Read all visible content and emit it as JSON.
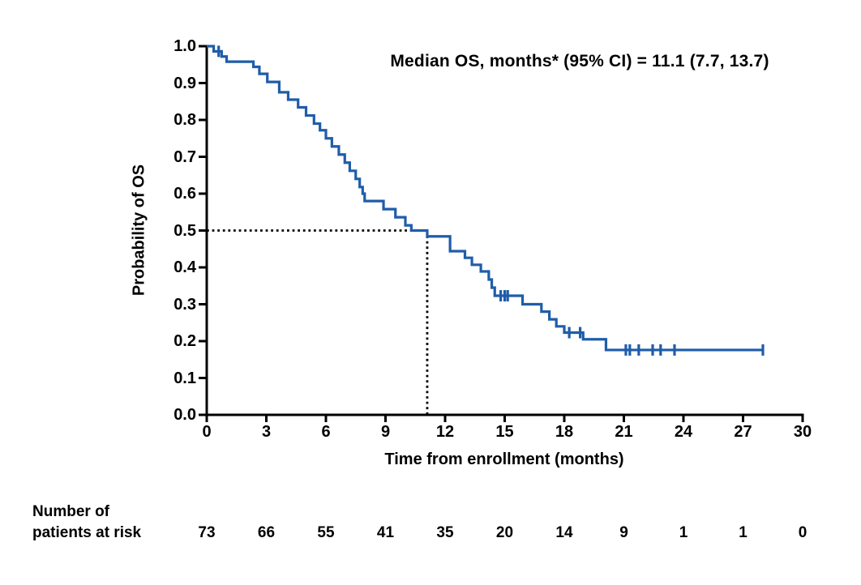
{
  "chart_data": {
    "type": "line",
    "subtype": "kaplan-meier-step-curve",
    "annotation": "Median OS, months* (95% CI) = 11.1 (7.7, 13.7)",
    "xlabel": "Time from enrollment (months)",
    "ylabel": "Probability of OS",
    "xlim": [
      0,
      30
    ],
    "ylim": [
      0.0,
      1.0
    ],
    "x_ticks": [
      0,
      3,
      6,
      9,
      12,
      15,
      18,
      21,
      24,
      27,
      30
    ],
    "y_ticks": [
      "1.0",
      "0.9",
      "0.8",
      "0.7",
      "0.6",
      "0.5",
      "0.4",
      "0.3",
      "0.2",
      "0.1",
      "0.0"
    ],
    "grid": false,
    "legend": "none",
    "median_os": {
      "value": 11.1,
      "ci_low": 7.7,
      "ci_high": 13.7
    },
    "reference_lines": {
      "horizontal_probability": 0.5,
      "vertical_time": 11.1,
      "style": "dotted-black"
    },
    "series": [
      {
        "name": "Overall survival",
        "color": "#1f5da9",
        "step_points": [
          [
            0.0,
            1.0
          ],
          [
            0.35,
            0.986
          ],
          [
            0.75,
            0.972
          ],
          [
            1.0,
            0.958
          ],
          [
            2.35,
            0.944
          ],
          [
            2.65,
            0.925
          ],
          [
            3.05,
            0.903
          ],
          [
            3.65,
            0.875
          ],
          [
            4.1,
            0.855
          ],
          [
            4.6,
            0.834
          ],
          [
            5.0,
            0.812
          ],
          [
            5.4,
            0.79
          ],
          [
            5.7,
            0.772
          ],
          [
            6.0,
            0.75
          ],
          [
            6.3,
            0.728
          ],
          [
            6.65,
            0.706
          ],
          [
            6.95,
            0.684
          ],
          [
            7.2,
            0.662
          ],
          [
            7.5,
            0.64
          ],
          [
            7.7,
            0.618
          ],
          [
            7.85,
            0.6
          ],
          [
            7.95,
            0.58
          ],
          [
            8.9,
            0.558
          ],
          [
            9.5,
            0.536
          ],
          [
            10.0,
            0.514
          ],
          [
            10.3,
            0.5
          ],
          [
            11.1,
            0.484
          ],
          [
            12.25,
            0.444
          ],
          [
            13.0,
            0.426
          ],
          [
            13.35,
            0.407
          ],
          [
            13.8,
            0.389
          ],
          [
            14.2,
            0.367
          ],
          [
            14.35,
            0.345
          ],
          [
            14.5,
            0.323
          ],
          [
            15.9,
            0.3
          ],
          [
            16.85,
            0.28
          ],
          [
            17.25,
            0.259
          ],
          [
            17.6,
            0.24
          ],
          [
            18.0,
            0.223
          ],
          [
            18.95,
            0.205
          ],
          [
            20.1,
            0.176
          ],
          [
            28.0,
            0.176
          ]
        ],
        "censor_marks": [
          [
            0.6,
            0.986
          ],
          [
            14.8,
            0.323
          ],
          [
            15.0,
            0.323
          ],
          [
            15.15,
            0.323
          ],
          [
            18.25,
            0.223
          ],
          [
            18.8,
            0.223
          ],
          [
            21.1,
            0.176
          ],
          [
            21.3,
            0.176
          ],
          [
            21.75,
            0.176
          ],
          [
            22.45,
            0.176
          ],
          [
            22.85,
            0.176
          ],
          [
            23.55,
            0.176
          ],
          [
            28.0,
            0.176
          ]
        ]
      }
    ]
  },
  "risk_table": {
    "label_line1": "Number of",
    "label_line2": "patients at risk",
    "times": [
      0,
      3,
      6,
      9,
      12,
      15,
      18,
      21,
      24,
      27,
      30
    ],
    "values": [
      73,
      66,
      55,
      41,
      35,
      20,
      14,
      9,
      1,
      1,
      0
    ]
  },
  "colors": {
    "curve": "#1f5da9",
    "axis": "#000000",
    "text": "#000000",
    "background": "#ffffff"
  }
}
